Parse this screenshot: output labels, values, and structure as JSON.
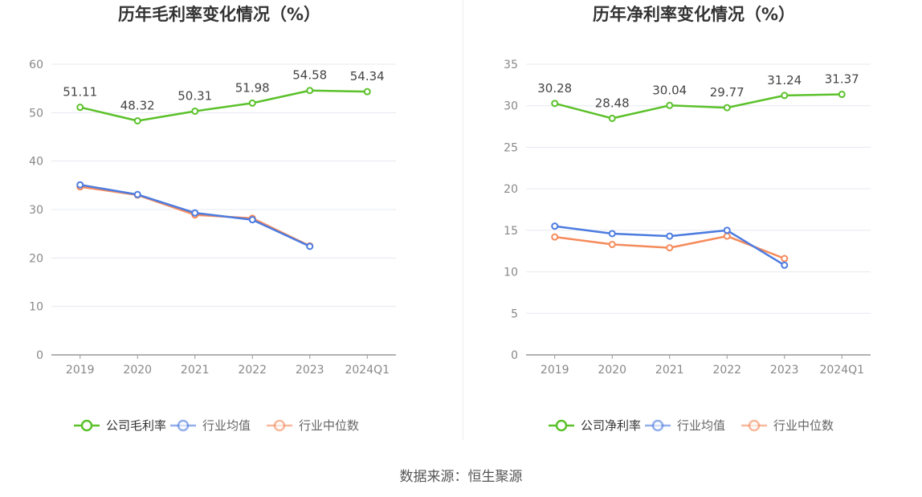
{
  "source_text": "数据来源：恒生聚源",
  "colors": {
    "company": "#5bc12a",
    "industry_avg": "#4c7be0",
    "industry_median": "#f58b5c",
    "grid": "#e6e8f0",
    "axis": "#999999",
    "tick_text": "#888888",
    "title_text": "#333333"
  },
  "chart_data": [
    {
      "type": "line",
      "title": "历年毛利率变化情况（%）",
      "categories": [
        "2019",
        "2020",
        "2021",
        "2022",
        "2023",
        "2024Q1"
      ],
      "ylim": [
        0,
        60
      ],
      "yticks": [
        0,
        10,
        20,
        30,
        40,
        50,
        60
      ],
      "grid": true,
      "legend_position": "bottom-center",
      "series": [
        {
          "name": "公司毛利率",
          "color_key": "company",
          "values": [
            51.11,
            48.32,
            50.31,
            51.98,
            54.58,
            54.34
          ],
          "labels": [
            "51.11",
            "48.32",
            "50.31",
            "51.98",
            "54.58",
            "54.34"
          ]
        },
        {
          "name": "行业均值",
          "color_key": "industry_avg",
          "values": [
            35.1,
            33.1,
            29.3,
            27.9,
            22.4,
            null
          ]
        },
        {
          "name": "行业中位数",
          "color_key": "industry_median",
          "values": [
            34.7,
            33.0,
            28.9,
            28.2,
            22.5,
            null
          ]
        }
      ]
    },
    {
      "type": "line",
      "title": "历年净利率变化情况（%）",
      "categories": [
        "2019",
        "2020",
        "2021",
        "2022",
        "2023",
        "2024Q1"
      ],
      "ylim": [
        0,
        35
      ],
      "yticks": [
        0,
        5,
        10,
        15,
        20,
        25,
        30,
        35
      ],
      "grid": true,
      "legend_position": "bottom-center",
      "series": [
        {
          "name": "公司净利率",
          "color_key": "company",
          "values": [
            30.28,
            28.48,
            30.04,
            29.77,
            31.24,
            31.37
          ],
          "labels": [
            "30.28",
            "28.48",
            "30.04",
            "29.77",
            "31.24",
            "31.37"
          ]
        },
        {
          "name": "行业均值",
          "color_key": "industry_avg",
          "values": [
            15.5,
            14.6,
            14.3,
            15.0,
            10.8,
            null
          ]
        },
        {
          "name": "行业中位数",
          "color_key": "industry_median",
          "values": [
            14.2,
            13.3,
            12.9,
            14.3,
            11.6,
            null
          ]
        }
      ]
    }
  ]
}
